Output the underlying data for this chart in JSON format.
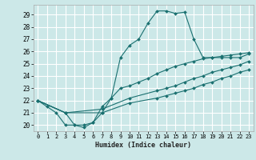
{
  "title": "",
  "xlabel": "Humidex (Indice chaleur)",
  "bg_color": "#cce8e8",
  "grid_color": "#ffffff",
  "line_color": "#1a7070",
  "xlim": [
    -0.5,
    23.5
  ],
  "ylim": [
    19.5,
    29.8
  ],
  "xticks": [
    0,
    1,
    2,
    3,
    4,
    5,
    6,
    7,
    8,
    9,
    10,
    11,
    12,
    13,
    14,
    15,
    16,
    17,
    18,
    19,
    20,
    21,
    22,
    23
  ],
  "yticks": [
    20,
    21,
    22,
    23,
    24,
    25,
    26,
    27,
    28,
    29
  ],
  "series": [
    {
      "x": [
        0,
        1,
        2,
        3,
        4,
        5,
        6,
        7,
        8,
        9,
        10,
        11,
        12,
        13,
        14,
        15,
        16,
        17,
        18,
        19,
        20,
        21,
        22,
        23
      ],
      "y": [
        22,
        21.5,
        21.0,
        20.0,
        20.0,
        19.8,
        20.2,
        21.5,
        22.2,
        25.5,
        26.5,
        27.0,
        28.3,
        29.3,
        29.3,
        29.1,
        29.2,
        27.0,
        25.5,
        25.5,
        25.5,
        25.5,
        25.5,
        25.8
      ]
    },
    {
      "x": [
        0,
        3,
        4,
        5,
        6,
        7,
        8,
        9,
        10,
        11,
        12,
        13,
        14,
        15,
        16,
        17,
        18,
        19,
        20,
        21,
        22,
        23
      ],
      "y": [
        22,
        21.0,
        20.0,
        20.0,
        20.2,
        21.0,
        22.2,
        23.0,
        23.2,
        23.5,
        23.8,
        24.2,
        24.5,
        24.8,
        25.0,
        25.2,
        25.4,
        25.5,
        25.6,
        25.7,
        25.8,
        25.9
      ]
    },
    {
      "x": [
        0,
        3,
        7,
        10,
        13,
        14,
        15,
        16,
        17,
        18,
        19,
        20,
        21,
        22,
        23
      ],
      "y": [
        22,
        21.0,
        21.3,
        22.2,
        22.8,
        23.0,
        23.2,
        23.5,
        23.8,
        24.0,
        24.3,
        24.5,
        24.7,
        24.9,
        25.2
      ]
    },
    {
      "x": [
        0,
        3,
        7,
        10,
        13,
        14,
        15,
        16,
        17,
        18,
        19,
        20,
        21,
        22,
        23
      ],
      "y": [
        22,
        21.0,
        21.0,
        21.8,
        22.2,
        22.4,
        22.6,
        22.8,
        23.0,
        23.3,
        23.5,
        23.8,
        24.0,
        24.3,
        24.5
      ]
    }
  ]
}
